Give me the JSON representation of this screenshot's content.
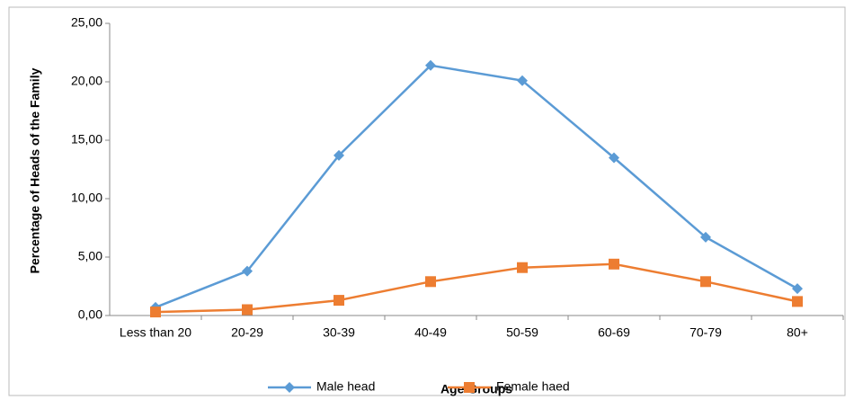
{
  "chart_data": {
    "type": "line",
    "x_label": "Age Groups",
    "y_label": "Percentage of Heads of the Family",
    "categories": [
      "Less than 20",
      "20-29",
      "30-39",
      "40-49",
      "50-59",
      "60-69",
      "70-79",
      "80+"
    ],
    "series": [
      {
        "name": "Male head",
        "color": "#5b9bd5",
        "marker": "diamond",
        "values": [
          0.7,
          3.8,
          13.7,
          21.4,
          20.1,
          13.5,
          6.7,
          2.3
        ]
      },
      {
        "name": "Female haed",
        "color": "#ed7d31",
        "marker": "square",
        "values": [
          0.3,
          0.5,
          1.3,
          2.9,
          4.1,
          4.4,
          2.9,
          1.2
        ]
      }
    ],
    "ylim": [
      0,
      25
    ],
    "yticks": [
      {
        "value": 0,
        "label": "0,00"
      },
      {
        "value": 5,
        "label": "5,00"
      },
      {
        "value": 10,
        "label": "10,00"
      },
      {
        "value": 15,
        "label": "15,00"
      },
      {
        "value": 20,
        "label": "20,00"
      },
      {
        "value": 25,
        "label": "25,00"
      }
    ],
    "legend": "bottom"
  }
}
